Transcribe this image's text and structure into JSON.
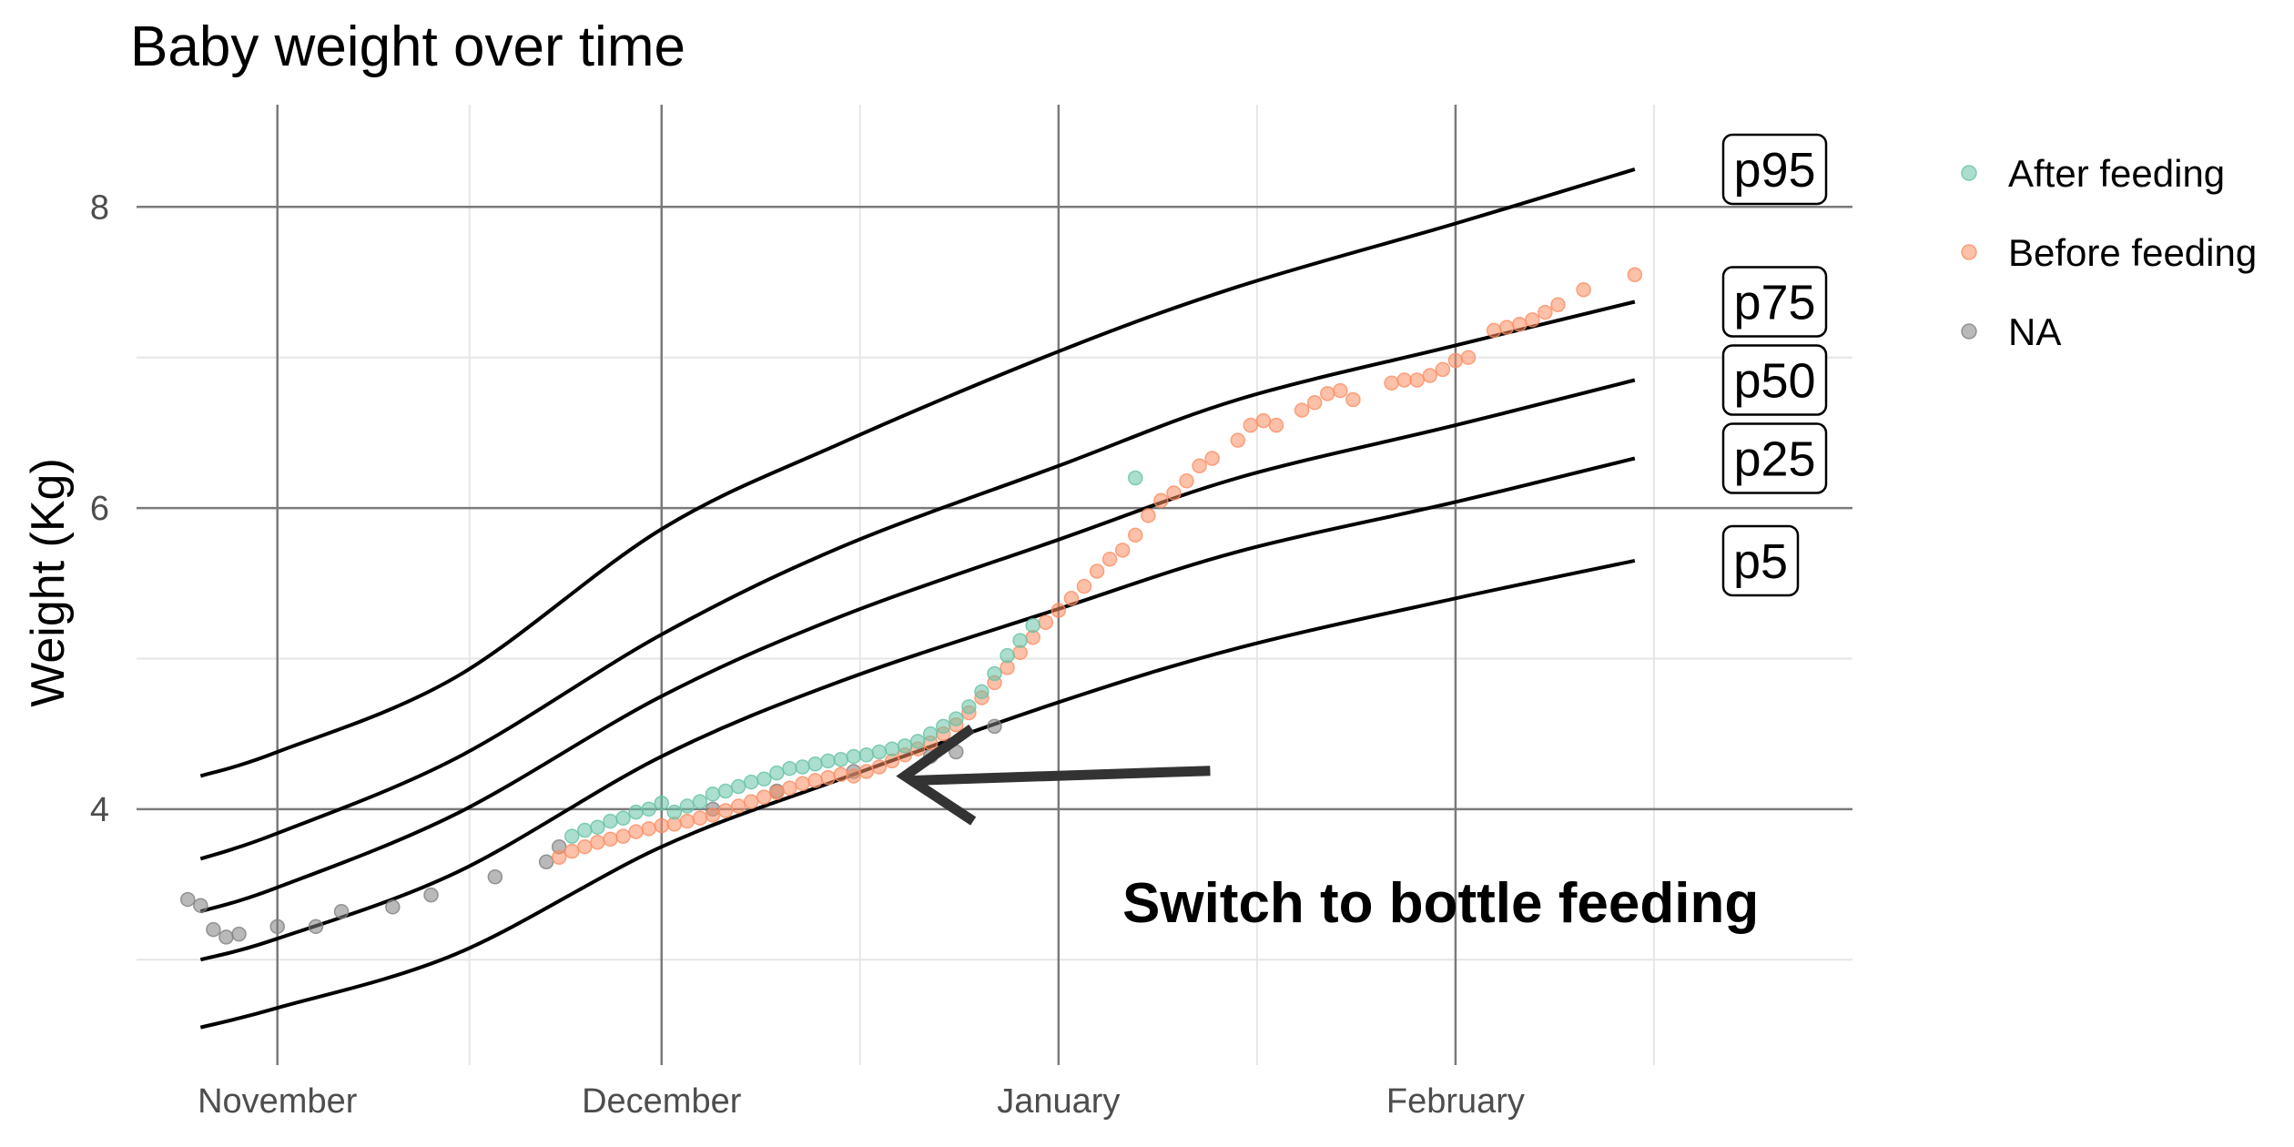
{
  "chart_data": {
    "type": "scatter",
    "title": "Baby weight over time",
    "xlabel": "",
    "ylabel": "Weight (Kg)",
    "x_axis_type": "date",
    "x_ticks": [
      {
        "date": "2023-11-01",
        "label": "November"
      },
      {
        "date": "2023-12-01",
        "label": "December"
      },
      {
        "date": "2024-01-01",
        "label": "January"
      },
      {
        "date": "2024-02-01",
        "label": "February"
      }
    ],
    "y_ticks": [
      4,
      6,
      8
    ],
    "ylim": [
      2.3,
      8.8
    ],
    "xlim": [
      "2023-10-21",
      "2024-03-03"
    ],
    "grid": true,
    "legend_position": "right",
    "colors": {
      "After feeding": "#66c2a5",
      "Before feeding": "#fc8d62",
      "NA": "#7f7f7f",
      "percentile_line": "#000000",
      "major_grid": "#7a7a7a",
      "minor_grid": "#e6e6e6"
    },
    "legend": [
      "After feeding",
      "Before feeding",
      "NA"
    ],
    "percentile_curves": [
      {
        "name": "p95",
        "points": [
          {
            "x": "2023-10-26",
            "y": 4.22
          },
          {
            "x": "2023-11-01",
            "y": 4.38
          },
          {
            "x": "2023-11-15",
            "y": 4.88
          },
          {
            "x": "2023-12-01",
            "y": 5.86
          },
          {
            "x": "2023-12-15",
            "y": 6.43
          },
          {
            "x": "2024-01-01",
            "y": 7.04
          },
          {
            "x": "2024-01-15",
            "y": 7.47
          },
          {
            "x": "2024-02-01",
            "y": 7.89
          },
          {
            "x": "2024-02-15",
            "y": 8.25
          }
        ]
      },
      {
        "name": "p75",
        "points": [
          {
            "x": "2023-10-26",
            "y": 3.67
          },
          {
            "x": "2023-11-01",
            "y": 3.84
          },
          {
            "x": "2023-11-15",
            "y": 4.34
          },
          {
            "x": "2023-12-01",
            "y": 5.16
          },
          {
            "x": "2023-12-15",
            "y": 5.74
          },
          {
            "x": "2024-01-01",
            "y": 6.28
          },
          {
            "x": "2024-01-15",
            "y": 6.72
          },
          {
            "x": "2024-02-01",
            "y": 7.08
          },
          {
            "x": "2024-02-15",
            "y": 7.37
          }
        ]
      },
      {
        "name": "p50",
        "points": [
          {
            "x": "2023-10-26",
            "y": 3.32
          },
          {
            "x": "2023-11-01",
            "y": 3.48
          },
          {
            "x": "2023-11-15",
            "y": 3.97
          },
          {
            "x": "2023-12-01",
            "y": 4.75
          },
          {
            "x": "2023-12-15",
            "y": 5.28
          },
          {
            "x": "2024-01-01",
            "y": 5.79
          },
          {
            "x": "2024-01-15",
            "y": 6.2
          },
          {
            "x": "2024-02-01",
            "y": 6.55
          },
          {
            "x": "2024-02-15",
            "y": 6.85
          }
        ]
      },
      {
        "name": "p25",
        "points": [
          {
            "x": "2023-10-26",
            "y": 3.0
          },
          {
            "x": "2023-11-01",
            "y": 3.14
          },
          {
            "x": "2023-11-15",
            "y": 3.58
          },
          {
            "x": "2023-12-01",
            "y": 4.35
          },
          {
            "x": "2023-12-15",
            "y": 4.85
          },
          {
            "x": "2024-01-01",
            "y": 5.33
          },
          {
            "x": "2024-01-15",
            "y": 5.71
          },
          {
            "x": "2024-02-01",
            "y": 6.04
          },
          {
            "x": "2024-02-15",
            "y": 6.33
          }
        ]
      },
      {
        "name": "p5",
        "points": [
          {
            "x": "2023-10-26",
            "y": 2.55
          },
          {
            "x": "2023-11-01",
            "y": 2.68
          },
          {
            "x": "2023-11-15",
            "y": 3.04
          },
          {
            "x": "2023-12-01",
            "y": 3.75
          },
          {
            "x": "2023-12-15",
            "y": 4.2
          },
          {
            "x": "2024-01-01",
            "y": 4.71
          },
          {
            "x": "2024-01-15",
            "y": 5.07
          },
          {
            "x": "2024-02-01",
            "y": 5.4
          },
          {
            "x": "2024-02-15",
            "y": 5.65
          }
        ]
      }
    ],
    "series": [
      {
        "name": "NA",
        "points": [
          {
            "x": "2023-10-25",
            "y": 3.4
          },
          {
            "x": "2023-10-26",
            "y": 3.36
          },
          {
            "x": "2023-10-27",
            "y": 3.2
          },
          {
            "x": "2023-10-28",
            "y": 3.15
          },
          {
            "x": "2023-10-29",
            "y": 3.17
          },
          {
            "x": "2023-11-01",
            "y": 3.22
          },
          {
            "x": "2023-11-04",
            "y": 3.22
          },
          {
            "x": "2023-11-06",
            "y": 3.32
          },
          {
            "x": "2023-11-10",
            "y": 3.35
          },
          {
            "x": "2023-11-13",
            "y": 3.43
          },
          {
            "x": "2023-11-18",
            "y": 3.55
          },
          {
            "x": "2023-11-22",
            "y": 3.65
          },
          {
            "x": "2023-11-23",
            "y": 3.75
          },
          {
            "x": "2023-12-05",
            "y": 4.0
          },
          {
            "x": "2023-12-10",
            "y": 4.12
          },
          {
            "x": "2023-12-16",
            "y": 4.25
          },
          {
            "x": "2023-12-22",
            "y": 4.35
          },
          {
            "x": "2023-12-24",
            "y": 4.38
          },
          {
            "x": "2023-12-27",
            "y": 4.55
          }
        ]
      },
      {
        "name": "After feeding",
        "points": [
          {
            "x": "2023-11-24",
            "y": 3.82
          },
          {
            "x": "2023-11-25",
            "y": 3.86
          },
          {
            "x": "2023-11-26",
            "y": 3.88
          },
          {
            "x": "2023-11-27",
            "y": 3.92
          },
          {
            "x": "2023-11-28",
            "y": 3.94
          },
          {
            "x": "2023-11-29",
            "y": 3.98
          },
          {
            "x": "2023-11-30",
            "y": 4.0
          },
          {
            "x": "2023-12-01",
            "y": 4.04
          },
          {
            "x": "2023-12-02",
            "y": 3.98
          },
          {
            "x": "2023-12-03",
            "y": 4.02
          },
          {
            "x": "2023-12-04",
            "y": 4.05
          },
          {
            "x": "2023-12-05",
            "y": 4.1
          },
          {
            "x": "2023-12-06",
            "y": 4.12
          },
          {
            "x": "2023-12-07",
            "y": 4.15
          },
          {
            "x": "2023-12-08",
            "y": 4.18
          },
          {
            "x": "2023-12-09",
            "y": 4.2
          },
          {
            "x": "2023-12-10",
            "y": 4.24
          },
          {
            "x": "2023-12-11",
            "y": 4.27
          },
          {
            "x": "2023-12-12",
            "y": 4.28
          },
          {
            "x": "2023-12-13",
            "y": 4.3
          },
          {
            "x": "2023-12-14",
            "y": 4.32
          },
          {
            "x": "2023-12-15",
            "y": 4.33
          },
          {
            "x": "2023-12-16",
            "y": 4.35
          },
          {
            "x": "2023-12-17",
            "y": 4.36
          },
          {
            "x": "2023-12-18",
            "y": 4.38
          },
          {
            "x": "2023-12-19",
            "y": 4.4
          },
          {
            "x": "2023-12-20",
            "y": 4.42
          },
          {
            "x": "2023-12-21",
            "y": 4.45
          },
          {
            "x": "2023-12-22",
            "y": 4.5
          },
          {
            "x": "2023-12-23",
            "y": 4.55
          },
          {
            "x": "2023-12-24",
            "y": 4.6
          },
          {
            "x": "2023-12-25",
            "y": 4.68
          },
          {
            "x": "2023-12-26",
            "y": 4.78
          },
          {
            "x": "2023-12-27",
            "y": 4.9
          },
          {
            "x": "2023-12-28",
            "y": 5.02
          },
          {
            "x": "2023-12-29",
            "y": 5.12
          },
          {
            "x": "2023-12-30",
            "y": 5.22
          },
          {
            "x": "2024-01-07",
            "y": 6.2
          }
        ]
      },
      {
        "name": "Before feeding",
        "points": [
          {
            "x": "2023-11-23",
            "y": 3.68
          },
          {
            "x": "2023-11-24",
            "y": 3.72
          },
          {
            "x": "2023-11-25",
            "y": 3.75
          },
          {
            "x": "2023-11-26",
            "y": 3.78
          },
          {
            "x": "2023-11-27",
            "y": 3.8
          },
          {
            "x": "2023-11-28",
            "y": 3.82
          },
          {
            "x": "2023-11-29",
            "y": 3.85
          },
          {
            "x": "2023-11-30",
            "y": 3.87
          },
          {
            "x": "2023-12-01",
            "y": 3.89
          },
          {
            "x": "2023-12-02",
            "y": 3.9
          },
          {
            "x": "2023-12-03",
            "y": 3.92
          },
          {
            "x": "2023-12-04",
            "y": 3.94
          },
          {
            "x": "2023-12-05",
            "y": 3.96
          },
          {
            "x": "2023-12-06",
            "y": 3.99
          },
          {
            "x": "2023-12-07",
            "y": 4.02
          },
          {
            "x": "2023-12-08",
            "y": 4.05
          },
          {
            "x": "2023-12-09",
            "y": 4.08
          },
          {
            "x": "2023-12-10",
            "y": 4.11
          },
          {
            "x": "2023-12-11",
            "y": 4.14
          },
          {
            "x": "2023-12-12",
            "y": 4.17
          },
          {
            "x": "2023-12-13",
            "y": 4.19
          },
          {
            "x": "2023-12-14",
            "y": 4.21
          },
          {
            "x": "2023-12-15",
            "y": 4.23
          },
          {
            "x": "2023-12-16",
            "y": 4.22
          },
          {
            "x": "2023-12-17",
            "y": 4.25
          },
          {
            "x": "2023-12-18",
            "y": 4.28
          },
          {
            "x": "2023-12-19",
            "y": 4.32
          },
          {
            "x": "2023-12-20",
            "y": 4.36
          },
          {
            "x": "2023-12-21",
            "y": 4.4
          },
          {
            "x": "2023-12-22",
            "y": 4.44
          },
          {
            "x": "2023-12-23",
            "y": 4.5
          },
          {
            "x": "2023-12-24",
            "y": 4.56
          },
          {
            "x": "2023-12-25",
            "y": 4.64
          },
          {
            "x": "2023-12-26",
            "y": 4.74
          },
          {
            "x": "2023-12-27",
            "y": 4.84
          },
          {
            "x": "2023-12-28",
            "y": 4.94
          },
          {
            "x": "2023-12-29",
            "y": 5.04
          },
          {
            "x": "2023-12-30",
            "y": 5.14
          },
          {
            "x": "2023-12-31",
            "y": 5.24
          },
          {
            "x": "2024-01-01",
            "y": 5.32
          },
          {
            "x": "2024-01-02",
            "y": 5.4
          },
          {
            "x": "2024-01-03",
            "y": 5.48
          },
          {
            "x": "2024-01-04",
            "y": 5.58
          },
          {
            "x": "2024-01-05",
            "y": 5.66
          },
          {
            "x": "2024-01-06",
            "y": 5.72
          },
          {
            "x": "2024-01-07",
            "y": 5.82
          },
          {
            "x": "2024-01-08",
            "y": 5.95
          },
          {
            "x": "2024-01-09",
            "y": 6.05
          },
          {
            "x": "2024-01-10",
            "y": 6.1
          },
          {
            "x": "2024-01-11",
            "y": 6.18
          },
          {
            "x": "2024-01-12",
            "y": 6.28
          },
          {
            "x": "2024-01-13",
            "y": 6.33
          },
          {
            "x": "2024-01-15",
            "y": 6.45
          },
          {
            "x": "2024-01-16",
            "y": 6.55
          },
          {
            "x": "2024-01-17",
            "y": 6.58
          },
          {
            "x": "2024-01-18",
            "y": 6.55
          },
          {
            "x": "2024-01-20",
            "y": 6.65
          },
          {
            "x": "2024-01-21",
            "y": 6.7
          },
          {
            "x": "2024-01-22",
            "y": 6.76
          },
          {
            "x": "2024-01-23",
            "y": 6.78
          },
          {
            "x": "2024-01-24",
            "y": 6.72
          },
          {
            "x": "2024-01-27",
            "y": 6.83
          },
          {
            "x": "2024-01-28",
            "y": 6.85
          },
          {
            "x": "2024-01-29",
            "y": 6.85
          },
          {
            "x": "2024-01-30",
            "y": 6.88
          },
          {
            "x": "2024-01-31",
            "y": 6.92
          },
          {
            "x": "2024-02-01",
            "y": 6.98
          },
          {
            "x": "2024-02-02",
            "y": 7.0
          },
          {
            "x": "2024-02-04",
            "y": 7.18
          },
          {
            "x": "2024-02-05",
            "y": 7.2
          },
          {
            "x": "2024-02-06",
            "y": 7.22
          },
          {
            "x": "2024-02-07",
            "y": 7.25
          },
          {
            "x": "2024-02-08",
            "y": 7.3
          },
          {
            "x": "2024-02-09",
            "y": 7.35
          },
          {
            "x": "2024-02-11",
            "y": 7.45
          },
          {
            "x": "2024-02-15",
            "y": 7.55
          }
        ]
      }
    ],
    "annotations": [
      {
        "text": "Switch to bottle feeding",
        "x": "2024-01-10",
        "y": 3.65,
        "arrow_to": {
          "x": "2023-12-20",
          "y": 4.22
        }
      }
    ]
  }
}
